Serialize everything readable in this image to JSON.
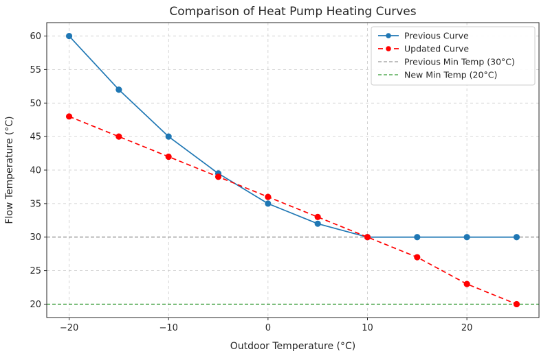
{
  "chart_data": {
    "type": "line",
    "title": "Comparison of Heat Pump Heating Curves",
    "xlabel": "Outdoor Temperature (°C)",
    "ylabel": "Flow Temperature (°C)",
    "x": [
      -20,
      -15,
      -10,
      -5,
      0,
      5,
      10,
      15,
      20,
      25
    ],
    "series": [
      {
        "name": "Previous Curve",
        "values": [
          60,
          52,
          45,
          39.5,
          35,
          32,
          30,
          30,
          30,
          30
        ],
        "color": "#1f77b4",
        "style": "solid",
        "marker": "circle"
      },
      {
        "name": "Updated Curve",
        "values": [
          48,
          45,
          42,
          39,
          36,
          33,
          30,
          27,
          23,
          20
        ],
        "color": "#ff0000",
        "style": "dashed",
        "marker": "circle"
      }
    ],
    "hlines": [
      {
        "name": "Previous Min Temp (30°C)",
        "y": 30,
        "color": "#7f7f7f",
        "style": "dashed"
      },
      {
        "name": "New Min Temp (20°C)",
        "y": 20,
        "color": "#008000",
        "style": "dashed"
      }
    ],
    "xlim": [
      -22.25,
      27.25
    ],
    "ylim": [
      18,
      62
    ],
    "xticks": [
      -20,
      -10,
      0,
      10,
      20
    ],
    "yticks": [
      20,
      25,
      30,
      35,
      40,
      45,
      50,
      55,
      60
    ],
    "grid": true,
    "grid_color": "#c8c8c8",
    "spine_color": "#262626",
    "legend_position": "top-right",
    "legend_border_color": "#cccccc"
  }
}
